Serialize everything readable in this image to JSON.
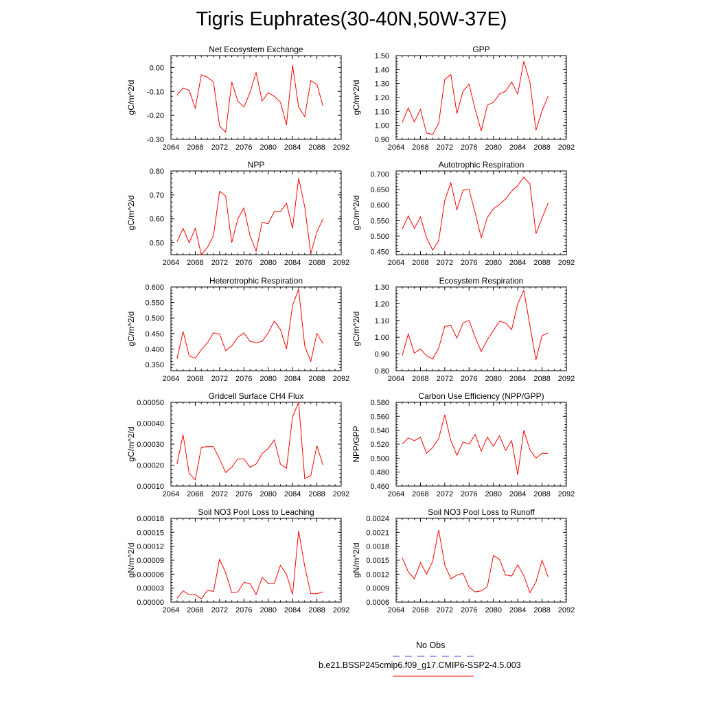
{
  "page": {
    "title": "Tigris Euphrates(30-40N,50W-37E)",
    "legend": {
      "obs_label": "No Obs",
      "obs_color": "#4040ff",
      "model_label": "b.e21.BSSP245cmip6.f09_g17.CMIP6-SSP2-4.5.003",
      "model_color": "#ff0000"
    }
  },
  "chart_data": [
    {
      "type": "line",
      "title": "Net Ecosystem Exchange",
      "ylabel": "gC/m^2/d",
      "xlim": [
        2064,
        2092
      ],
      "xticks": [
        "2064",
        "2068",
        "2072",
        "2076",
        "2080",
        "2084",
        "2088",
        "2092"
      ],
      "ylim": [
        -0.3,
        0.05
      ],
      "yticks": [
        "-0.30",
        "-0.20",
        "-0.10",
        "0.00"
      ],
      "series": [
        {
          "color": "#ff0000",
          "x": [
            2065,
            2066,
            2067,
            2068,
            2069,
            2070,
            2071,
            2072,
            2073,
            2074,
            2075,
            2076,
            2077,
            2078,
            2079,
            2080,
            2081,
            2082,
            2083,
            2084,
            2085,
            2086,
            2087,
            2088,
            2089
          ],
          "y": [
            -0.115,
            -0.085,
            -0.095,
            -0.17,
            -0.03,
            -0.04,
            -0.06,
            -0.245,
            -0.27,
            -0.06,
            -0.14,
            -0.165,
            -0.105,
            -0.02,
            -0.14,
            -0.105,
            -0.12,
            -0.145,
            -0.24,
            0.01,
            -0.165,
            -0.205,
            -0.055,
            -0.07,
            -0.16
          ]
        }
      ]
    },
    {
      "type": "line",
      "title": "GPP",
      "ylabel": "gC/m^2/d",
      "xlim": [
        2064,
        2092
      ],
      "xticks": [
        "2064",
        "2068",
        "2072",
        "2076",
        "2080",
        "2084",
        "2088",
        "2092"
      ],
      "ylim": [
        0.9,
        1.5
      ],
      "yticks": [
        "0.90",
        "1.00",
        "1.10",
        "1.20",
        "1.30",
        "1.40",
        "1.50"
      ],
      "series": [
        {
          "color": "#ff0000",
          "x": [
            2065,
            2066,
            2067,
            2068,
            2069,
            2070,
            2071,
            2072,
            2073,
            2074,
            2075,
            2076,
            2077,
            2078,
            2079,
            2080,
            2081,
            2082,
            2083,
            2084,
            2085,
            2086,
            2087,
            2088,
            2089
          ],
          "y": [
            1.02,
            1.125,
            1.025,
            1.115,
            0.945,
            0.935,
            1.015,
            1.33,
            1.365,
            1.085,
            1.245,
            1.295,
            1.115,
            0.96,
            1.145,
            1.165,
            1.225,
            1.245,
            1.31,
            1.225,
            1.46,
            1.31,
            0.965,
            1.105,
            1.21
          ]
        }
      ]
    },
    {
      "type": "line",
      "title": "NPP",
      "ylabel": "gC/m^2/d",
      "xlim": [
        2064,
        2092
      ],
      "xticks": [
        "2064",
        "2068",
        "2072",
        "2076",
        "2080",
        "2084",
        "2088",
        "2092"
      ],
      "ylim": [
        0.45,
        0.8
      ],
      "yticks": [
        "0.50",
        "0.60",
        "0.70",
        "0.80"
      ],
      "series": [
        {
          "color": "#ff0000",
          "x": [
            2065,
            2066,
            2067,
            2068,
            2069,
            2070,
            2071,
            2072,
            2073,
            2074,
            2075,
            2076,
            2077,
            2078,
            2079,
            2080,
            2081,
            2082,
            2083,
            2084,
            2085,
            2086,
            2087,
            2088,
            2089
          ],
          "y": [
            0.505,
            0.56,
            0.5,
            0.56,
            0.45,
            0.48,
            0.53,
            0.715,
            0.695,
            0.5,
            0.6,
            0.645,
            0.53,
            0.465,
            0.585,
            0.58,
            0.63,
            0.63,
            0.665,
            0.56,
            0.77,
            0.65,
            0.455,
            0.545,
            0.6
          ]
        }
      ]
    },
    {
      "type": "line",
      "title": "Autotrophic Respiration",
      "ylabel": "gC/m^2/d",
      "xlim": [
        2064,
        2092
      ],
      "xticks": [
        "2064",
        "2068",
        "2072",
        "2076",
        "2080",
        "2084",
        "2088",
        "2092"
      ],
      "ylim": [
        0.44,
        0.71
      ],
      "yticks": [
        "0.450",
        "0.500",
        "0.550",
        "0.600",
        "0.650",
        "0.700"
      ],
      "series": [
        {
          "color": "#ff0000",
          "x": [
            2065,
            2066,
            2067,
            2068,
            2069,
            2070,
            2071,
            2072,
            2073,
            2074,
            2075,
            2076,
            2077,
            2078,
            2079,
            2080,
            2081,
            2082,
            2083,
            2084,
            2085,
            2086,
            2087,
            2088,
            2089
          ],
          "y": [
            0.522,
            0.565,
            0.525,
            0.562,
            0.495,
            0.455,
            0.485,
            0.615,
            0.672,
            0.585,
            0.648,
            0.65,
            0.575,
            0.495,
            0.56,
            0.588,
            0.602,
            0.62,
            0.645,
            0.663,
            0.69,
            0.668,
            0.508,
            0.558,
            0.607
          ]
        }
      ]
    },
    {
      "type": "line",
      "title": "Heterotrophic Respiration",
      "ylabel": "gC/m^2/d",
      "xlim": [
        2064,
        2092
      ],
      "xticks": [
        "2064",
        "2068",
        "2072",
        "2076",
        "2080",
        "2084",
        "2088",
        "2092"
      ],
      "ylim": [
        0.33,
        0.6
      ],
      "yticks": [
        "0.350",
        "0.400",
        "0.450",
        "0.500",
        "0.550",
        "0.600"
      ],
      "series": [
        {
          "color": "#ff0000",
          "x": [
            2065,
            2066,
            2067,
            2068,
            2069,
            2070,
            2071,
            2072,
            2073,
            2074,
            2075,
            2076,
            2077,
            2078,
            2079,
            2080,
            2081,
            2082,
            2083,
            2084,
            2085,
            2086,
            2087,
            2088,
            2089
          ],
          "y": [
            0.368,
            0.457,
            0.378,
            0.37,
            0.398,
            0.42,
            0.452,
            0.448,
            0.395,
            0.41,
            0.438,
            0.452,
            0.425,
            0.42,
            0.425,
            0.452,
            0.49,
            0.463,
            0.4,
            0.54,
            0.593,
            0.41,
            0.36,
            0.45,
            0.418
          ]
        }
      ]
    },
    {
      "type": "line",
      "title": "Ecosystem Respiration",
      "ylabel": "gC/m^2/d",
      "xlim": [
        2064,
        2092
      ],
      "xticks": [
        "2064",
        "2068",
        "2072",
        "2076",
        "2080",
        "2084",
        "2088",
        "2092"
      ],
      "ylim": [
        0.8,
        1.3
      ],
      "yticks": [
        "0.80",
        "0.90",
        "1.00",
        "1.10",
        "1.20",
        "1.30"
      ],
      "series": [
        {
          "color": "#ff0000",
          "x": [
            2065,
            2066,
            2067,
            2068,
            2069,
            2070,
            2071,
            2072,
            2073,
            2074,
            2075,
            2076,
            2077,
            2078,
            2079,
            2080,
            2081,
            2082,
            2083,
            2084,
            2085,
            2086,
            2087,
            2088,
            2089
          ],
          "y": [
            0.89,
            1.02,
            0.905,
            0.93,
            0.89,
            0.87,
            0.935,
            1.065,
            1.07,
            0.995,
            1.085,
            1.1,
            1.0,
            0.915,
            0.985,
            1.04,
            1.095,
            1.085,
            1.045,
            1.2,
            1.28,
            1.07,
            0.865,
            1.01,
            1.025
          ]
        }
      ]
    },
    {
      "type": "line",
      "title": "Gridcell Surface CH4 Flux",
      "ylabel": "gC/m^2/d",
      "xlim": [
        2064,
        2092
      ],
      "xticks": [
        "2064",
        "2068",
        "2072",
        "2076",
        "2080",
        "2084",
        "2088",
        "2092"
      ],
      "ylim": [
        0.0001,
        0.0005
      ],
      "yticks": [
        "0.00010",
        "0.00020",
        "0.00030",
        "0.00040",
        "0.00050"
      ],
      "series": [
        {
          "color": "#ff0000",
          "x": [
            2065,
            2066,
            2067,
            2068,
            2069,
            2070,
            2071,
            2072,
            2073,
            2074,
            2075,
            2076,
            2077,
            2078,
            2079,
            2080,
            2081,
            2082,
            2083,
            2084,
            2085,
            2086,
            2087,
            2088,
            2089
          ],
          "y": [
            0.000205,
            0.000345,
            0.00016,
            0.00013,
            0.000285,
            0.000288,
            0.000288,
            0.000228,
            0.000165,
            0.00019,
            0.00023,
            0.00023,
            0.00019,
            0.000205,
            0.000255,
            0.00028,
            0.00032,
            0.000205,
            0.000185,
            0.00043,
            0.0005,
            0.000135,
            0.00015,
            0.000293,
            0.0002
          ]
        }
      ]
    },
    {
      "type": "line",
      "title": "Carbon Use Efficiency (NPP/GPP)",
      "ylabel": "NPP/GPP",
      "xlim": [
        2064,
        2092
      ],
      "xticks": [
        "2064",
        "2068",
        "2072",
        "2076",
        "2080",
        "2084",
        "2088",
        "2092"
      ],
      "ylim": [
        0.46,
        0.58
      ],
      "yticks": [
        "0.460",
        "0.480",
        "0.500",
        "0.520",
        "0.540",
        "0.560",
        "0.580"
      ],
      "series": [
        {
          "color": "#ff0000",
          "x": [
            2065,
            2066,
            2067,
            2068,
            2069,
            2070,
            2071,
            2072,
            2073,
            2074,
            2075,
            2076,
            2077,
            2078,
            2079,
            2080,
            2081,
            2082,
            2083,
            2084,
            2085,
            2086,
            2087,
            2088,
            2089
          ],
          "y": [
            0.52,
            0.529,
            0.525,
            0.53,
            0.507,
            0.515,
            0.528,
            0.562,
            0.525,
            0.504,
            0.523,
            0.52,
            0.534,
            0.51,
            0.53,
            0.517,
            0.532,
            0.511,
            0.525,
            0.476,
            0.54,
            0.512,
            0.5,
            0.507,
            0.507
          ]
        }
      ]
    },
    {
      "type": "line",
      "title": "Soil NO3 Pool Loss to Leaching",
      "ylabel": "gN/m^2/d",
      "xlim": [
        2064,
        2092
      ],
      "xticks": [
        "2064",
        "2068",
        "2072",
        "2076",
        "2080",
        "2084",
        "2088",
        "2092"
      ],
      "ylim": [
        0.0,
        0.00018
      ],
      "yticks": [
        "0.00000",
        "0.00003",
        "0.00006",
        "0.00009",
        "0.00012",
        "0.00015",
        "0.00018"
      ],
      "series": [
        {
          "color": "#ff0000",
          "x": [
            2065,
            2066,
            2067,
            2068,
            2069,
            2070,
            2071,
            2072,
            2073,
            2074,
            2075,
            2076,
            2077,
            2078,
            2079,
            2080,
            2081,
            2082,
            2083,
            2084,
            2085,
            2086,
            2087,
            2088,
            2089
          ],
          "y": [
            8e-06,
            2.4e-05,
            1.6e-05,
            1.6e-05,
            7e-06,
            2.5e-05,
            2.3e-05,
            9.2e-05,
            6.3e-05,
            2e-05,
            2.2e-05,
            4.2e-05,
            4e-05,
            1.6e-05,
            5.3e-05,
            4e-05,
            4e-05,
            7.9e-05,
            6e-05,
            1.6e-05,
            0.000153,
            7.7e-05,
            1.8e-05,
            1.8e-05,
            2.2e-05
          ]
        }
      ]
    },
    {
      "type": "line",
      "title": "Soil NO3 Pool Loss to Runoff",
      "ylabel": "gN/m^2/d",
      "xlim": [
        2064,
        2092
      ],
      "xticks": [
        "2064",
        "2068",
        "2072",
        "2076",
        "2080",
        "2084",
        "2088",
        "2092"
      ],
      "ylim": [
        0.0006,
        0.0024
      ],
      "yticks": [
        "0.0006",
        "0.0009",
        "0.0012",
        "0.0015",
        "0.0018",
        "0.0021",
        "0.0024"
      ],
      "series": [
        {
          "color": "#ff0000",
          "x": [
            2065,
            2066,
            2067,
            2068,
            2069,
            2070,
            2071,
            2072,
            2073,
            2074,
            2075,
            2076,
            2077,
            2078,
            2079,
            2080,
            2081,
            2082,
            2083,
            2084,
            2085,
            2086,
            2087,
            2088,
            2089
          ],
          "y": [
            0.00155,
            0.00125,
            0.0011,
            0.00145,
            0.0012,
            0.00147,
            0.00215,
            0.0014,
            0.0011,
            0.00118,
            0.00122,
            0.00092,
            0.00082,
            0.00084,
            0.00093,
            0.0016,
            0.00152,
            0.00118,
            0.00116,
            0.0014,
            0.00117,
            0.0008,
            0.00103,
            0.0015,
            0.00114
          ]
        }
      ]
    }
  ]
}
